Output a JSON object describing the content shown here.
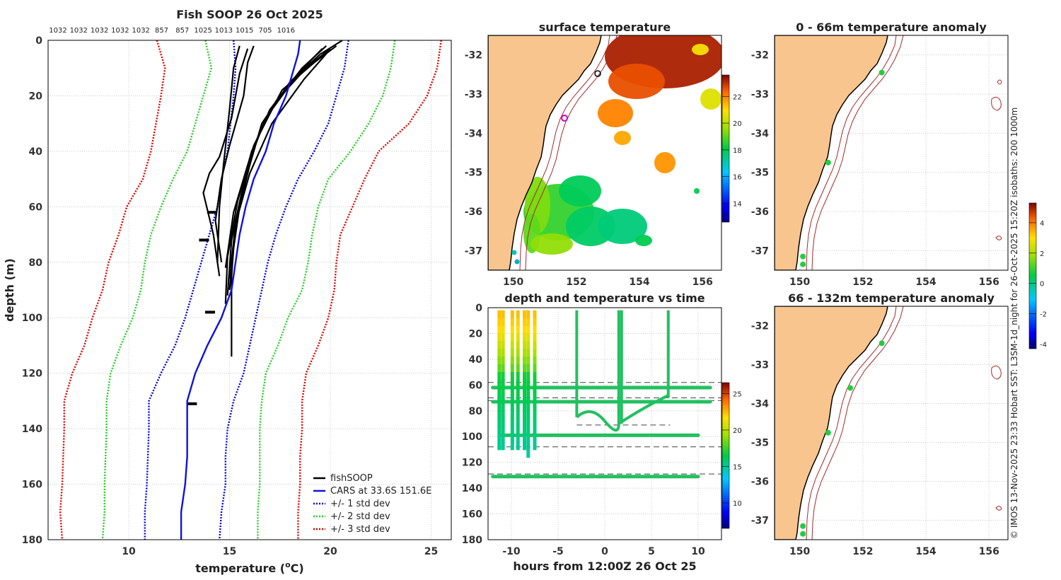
{
  "page_title": "Fish SOOP 26 Oct 2025",
  "credit": "© IMOS 13-Nov-2025 23:33 Hobart SST: L3SM-1d_night for 26-Oct-2025 15:20Z isobaths: 200  1000m",
  "chart_data": [
    {
      "id": "profile",
      "type": "line",
      "title": "Fish SOOP 26 Oct 2025",
      "top_labels": [
        "1032",
        "1032",
        "1032",
        "1032",
        "1032",
        "857",
        "857",
        "1025",
        "1013",
        "1015",
        "705",
        "1016"
      ],
      "xlabel": "temperature (°C)",
      "xlabel_main": "temperature (",
      "xlabel_unit": "C)",
      "xlabel_degree": "o",
      "ylabel": "depth (m)",
      "xlim": [
        6,
        26
      ],
      "ylim": [
        0,
        180
      ],
      "xticks": [
        10,
        15,
        20,
        25
      ],
      "yticks": [
        0,
        20,
        40,
        60,
        80,
        100,
        120,
        140,
        160,
        180
      ],
      "legend": [
        "fishSOOP",
        "CARS at 33.6S 151.6E",
        "+/- 1 std dev",
        "+/- 2 std dev",
        "+/- 3 std dev"
      ],
      "series": [
        {
          "name": "CARS",
          "depth": [
            0,
            5,
            20,
            30,
            40,
            50,
            60,
            70,
            80,
            90,
            100,
            110,
            120,
            130,
            140,
            150,
            160,
            170,
            180
          ],
          "temp": [
            18.5,
            18.4,
            17.8,
            17.2,
            16.8,
            16.2,
            15.8,
            15.5,
            15.3,
            15.1,
            14.6,
            13.9,
            13.3,
            12.9,
            12.9,
            12.9,
            12.8,
            12.6,
            12.6
          ]
        },
        {
          "name": "-1 std",
          "depth": [
            0,
            10,
            20,
            40,
            50,
            60,
            70,
            80,
            90,
            100,
            110,
            120,
            130,
            140,
            160,
            170,
            180
          ],
          "temp": [
            15.2,
            15.3,
            15.2,
            14.9,
            14.6,
            14.4,
            14.0,
            13.6,
            13.2,
            12.8,
            12.3,
            11.6,
            11.0,
            11.0,
            10.9,
            10.8,
            10.8
          ]
        },
        {
          "name": "+1 std",
          "depth": [
            0,
            10,
            20,
            30,
            40,
            50,
            60,
            70,
            80,
            90,
            100,
            110,
            120,
            130,
            140,
            150,
            160,
            170,
            180
          ],
          "temp": [
            20.9,
            20.7,
            20.3,
            19.9,
            19.2,
            18.4,
            17.8,
            17.3,
            16.9,
            16.6,
            16.3,
            16.0,
            15.7,
            15.2,
            14.9,
            14.8,
            14.8,
            14.6,
            14.5
          ]
        },
        {
          "name": "-2 std",
          "depth": [
            0,
            10,
            20,
            40,
            50,
            60,
            70,
            80,
            90,
            100,
            110,
            120,
            130,
            140,
            160,
            170,
            180
          ],
          "temp": [
            13.8,
            14.1,
            13.7,
            12.9,
            12.2,
            11.6,
            11.1,
            10.8,
            10.6,
            10.2,
            9.6,
            9.1,
            8.9,
            8.9,
            8.8,
            8.8,
            8.7
          ]
        },
        {
          "name": "+2 std",
          "depth": [
            0,
            10,
            20,
            30,
            40,
            50,
            60,
            70,
            80,
            90,
            100,
            110,
            120,
            130,
            140,
            150,
            160,
            170,
            180
          ],
          "temp": [
            23.2,
            23.0,
            22.6,
            21.9,
            21.0,
            19.9,
            19.4,
            19.1,
            18.9,
            18.6,
            17.9,
            17.4,
            16.8,
            16.6,
            16.5,
            16.5,
            16.5,
            16.4,
            16.4
          ]
        },
        {
          "name": "-3 std",
          "depth": [
            0,
            10,
            20,
            40,
            50,
            60,
            70,
            80,
            90,
            100,
            110,
            120,
            130,
            140,
            160,
            170,
            180
          ],
          "temp": [
            11.4,
            11.8,
            11.6,
            11.1,
            10.7,
            9.9,
            9.5,
            9.0,
            8.7,
            8.2,
            7.8,
            7.2,
            6.8,
            6.8,
            6.7,
            6.6,
            6.7
          ]
        },
        {
          "name": "+3 std",
          "depth": [
            0,
            10,
            20,
            30,
            40,
            50,
            60,
            70,
            80,
            90,
            100,
            110,
            120,
            130,
            140,
            150,
            160,
            170,
            180
          ],
          "temp": [
            25.5,
            25.3,
            24.8,
            23.9,
            22.4,
            21.7,
            21.1,
            20.5,
            20.3,
            20.2,
            19.9,
            19.4,
            18.8,
            18.6,
            18.6,
            18.5,
            18.5,
            18.4,
            18.4
          ]
        }
      ]
    },
    {
      "id": "sst",
      "type": "heatmap",
      "title": "surface temperature",
      "xlim": [
        149.2,
        156.6
      ],
      "ylim": [
        -37.5,
        -31.5
      ],
      "xticks": [
        150,
        152,
        154,
        156
      ],
      "yticks": [
        -32,
        -33,
        -34,
        -35,
        -36,
        -37
      ],
      "colorbar": {
        "min": 12.6,
        "max": 23.6,
        "ticks": [
          14,
          16,
          18,
          20,
          22
        ]
      }
    },
    {
      "id": "anomaly_shallow",
      "type": "scatter",
      "title": "0 - 66m temperature anomaly",
      "xlim": [
        149.2,
        156.6
      ],
      "ylim": [
        -37.5,
        -31.5
      ],
      "xticks": [
        150,
        152,
        154,
        156
      ],
      "yticks": [
        -32,
        -33,
        -34,
        -35,
        -36,
        -37
      ],
      "points": [
        {
          "lon": 152.6,
          "lat": -32.45
        },
        {
          "lon": 150.9,
          "lat": -34.75
        },
        {
          "lon": 150.1,
          "lat": -37.15
        },
        {
          "lon": 150.1,
          "lat": -37.35
        }
      ]
    },
    {
      "id": "anomaly_deep",
      "type": "scatter",
      "title": "66 - 132m temperature anomaly",
      "xlim": [
        149.2,
        156.6
      ],
      "ylim": [
        -37.5,
        -31.5
      ],
      "xticks": [
        150,
        152,
        154,
        156
      ],
      "yticks": [
        -32,
        -33,
        -34,
        -35,
        -36,
        -37
      ],
      "points": [
        {
          "lon": 152.6,
          "lat": -32.45
        },
        {
          "lon": 151.6,
          "lat": -33.6
        },
        {
          "lon": 150.9,
          "lat": -34.75
        },
        {
          "lon": 150.1,
          "lat": -37.15
        },
        {
          "lon": 150.1,
          "lat": -37.35
        }
      ],
      "colorbar": {
        "min": -4.3,
        "max": 5.3,
        "ticks": [
          -4,
          -2,
          0,
          2,
          4
        ]
      }
    },
    {
      "id": "depth_time",
      "type": "scatter",
      "title": "depth and temperature vs time",
      "xlabel": "hours from 12:00Z 26 Oct 25",
      "ylabel": "",
      "xlim": [
        -12.5,
        12.5
      ],
      "ylim": [
        0,
        180
      ],
      "xticks": [
        -10,
        -5,
        0,
        5,
        10
      ],
      "yticks": [
        0,
        20,
        40,
        60,
        80,
        100,
        120,
        140,
        160,
        180
      ],
      "dashed_depths": [
        58,
        70,
        72,
        108,
        129
      ],
      "colorbar": {
        "min": 6.5,
        "max": 26.5,
        "ticks": [
          10,
          15,
          20,
          25
        ]
      }
    }
  ]
}
